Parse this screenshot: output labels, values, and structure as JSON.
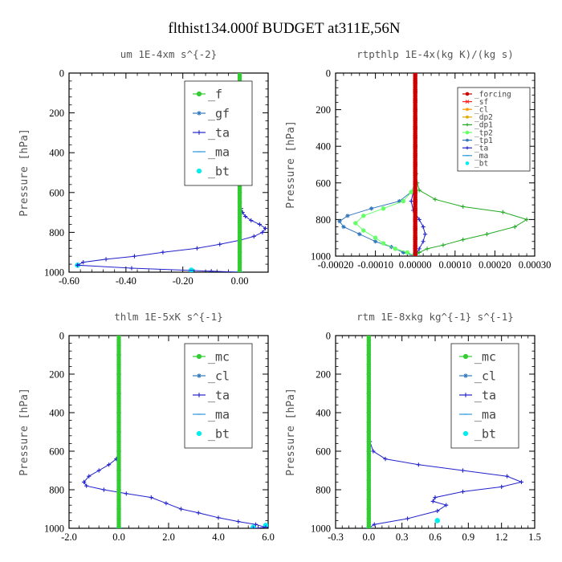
{
  "title": "flthist134.000f  BUDGET at311E,56N",
  "chart_data": [
    {
      "type": "line",
      "title": "um  1E-4xm s^{-2}",
      "ylabel": "Pressure [hPa]",
      "xlim": [
        -0.6,
        0.1
      ],
      "ylim": [
        0,
        1000
      ],
      "y_inverted": true,
      "xticks": [
        -0.6,
        -0.4,
        -0.2,
        0.0
      ],
      "xtick_labels": [
        "-0.60",
        "-0.40",
        "-0.20",
        "0.00"
      ],
      "yticks": [
        0,
        200,
        400,
        600,
        800,
        1000
      ],
      "ytick_labels": [
        "0",
        "200",
        "400",
        "600",
        "800",
        "1000"
      ],
      "legend_position": "top-right",
      "legend_size": "large",
      "series": [
        {
          "name": "_f",
          "color": "#33cc33",
          "marker": "o",
          "x": [
            0,
            0,
            0,
            0,
            0,
            0,
            0,
            0,
            0,
            0,
            0,
            0,
            0,
            0,
            0,
            0,
            0,
            0,
            0,
            0,
            0
          ],
          "y": [
            0,
            50,
            100,
            150,
            200,
            250,
            300,
            350,
            400,
            450,
            500,
            550,
            600,
            650,
            700,
            750,
            800,
            850,
            900,
            950,
            1000
          ]
        },
        {
          "name": "_gf",
          "color": "#3377bb",
          "marker": "*",
          "x": [
            0,
            0,
            0,
            0,
            0,
            0,
            0,
            0,
            0,
            0,
            0,
            0,
            0,
            0,
            0,
            0,
            0,
            0,
            0,
            0,
            0
          ],
          "y": [
            0,
            50,
            100,
            150,
            200,
            250,
            300,
            350,
            400,
            450,
            500,
            550,
            600,
            650,
            700,
            750,
            800,
            850,
            900,
            950,
            1000
          ]
        },
        {
          "name": "_ta",
          "color": "#2222cc",
          "marker": "+",
          "x": [
            0,
            0,
            0,
            0,
            0,
            0,
            0,
            0,
            0.005,
            0.01,
            0.02,
            0.04,
            0.07,
            0.09,
            0.08,
            0.05,
            0.0,
            -0.07,
            -0.15,
            -0.27,
            -0.37,
            -0.47,
            -0.55,
            -0.57,
            -0.38,
            -0.1,
            0
          ],
          "y": [
            0,
            100,
            200,
            300,
            400,
            500,
            600,
            650,
            680,
            700,
            720,
            740,
            760,
            780,
            800,
            820,
            840,
            860,
            880,
            900,
            920,
            935,
            950,
            965,
            980,
            995,
            1000
          ]
        },
        {
          "name": "_ma",
          "color": "#3399dd",
          "marker": "-",
          "x": [
            0,
            0,
            0,
            0,
            0,
            0,
            0,
            0,
            0,
            0
          ],
          "y": [
            0,
            100,
            200,
            300,
            400,
            500,
            600,
            700,
            800,
            900
          ]
        },
        {
          "name": "_bt",
          "color": "#00eeee",
          "marker": "o",
          "x": [
            0.0,
            -0.57,
            -0.17,
            0.0
          ],
          "y": [
            1000,
            965,
            990,
            1000
          ]
        }
      ]
    },
    {
      "type": "line",
      "title": "rtpthlp  1E-4x(kg K)/(kg s)",
      "ylabel": "Pressure [hPa]",
      "xlim": [
        -0.0002,
        0.0003
      ],
      "ylim": [
        0,
        1000
      ],
      "y_inverted": true,
      "xticks": [
        -0.0002,
        -0.0001,
        0.0,
        0.0001,
        0.0002,
        0.0003
      ],
      "xtick_labels": [
        "-0.00020",
        "-0.00010",
        "0.00000",
        "0.00010",
        "0.00020",
        "0.00030"
      ],
      "yticks": [
        0,
        200,
        400,
        600,
        800,
        1000
      ],
      "ytick_labels": [
        "0",
        "200",
        "400",
        "600",
        "800",
        "1000"
      ],
      "legend_position": "top-right",
      "legend_size": "small",
      "series": [
        {
          "name": "_forcing",
          "color": "#cc0000",
          "marker": "o",
          "x": [
            0,
            0,
            0,
            0,
            0,
            0,
            0,
            0,
            0,
            0,
            0,
            0,
            0,
            0,
            0,
            0,
            0,
            0,
            0,
            0,
            0
          ],
          "y": [
            0,
            50,
            100,
            150,
            200,
            250,
            300,
            350,
            400,
            450,
            500,
            550,
            600,
            650,
            700,
            750,
            800,
            850,
            900,
            950,
            1000
          ]
        },
        {
          "name": "_sf",
          "color": "#ff2222",
          "marker": "x",
          "x": [
            0,
            0,
            0,
            0,
            0,
            0,
            0,
            0,
            0,
            0,
            0,
            0,
            0,
            0,
            0,
            0,
            0,
            0,
            0,
            0,
            0
          ],
          "y": [
            0,
            50,
            100,
            150,
            200,
            250,
            300,
            350,
            400,
            450,
            500,
            550,
            600,
            650,
            700,
            750,
            800,
            850,
            900,
            950,
            1000
          ]
        },
        {
          "name": "_cl",
          "color": "#ff9900",
          "marker": "*",
          "x": [
            0,
            0,
            0,
            0,
            0,
            0,
            0,
            0,
            0,
            0,
            0
          ],
          "y": [
            0,
            100,
            200,
            300,
            400,
            500,
            600,
            700,
            800,
            900,
            1000
          ]
        },
        {
          "name": "_dp2",
          "color": "#ddaa00",
          "marker": "*",
          "x": [
            0,
            0,
            0,
            0,
            0,
            0,
            0,
            0,
            0,
            0,
            0
          ],
          "y": [
            0,
            100,
            200,
            300,
            400,
            500,
            600,
            700,
            800,
            900,
            1000
          ]
        },
        {
          "name": "_dp1",
          "color": "#22aa22",
          "marker": "+",
          "x": [
            0,
            0,
            0,
            0,
            0,
            0,
            2e-06,
            5e-06,
            1e-05,
            5e-05,
            0.00012,
            0.00022,
            0.00028,
            0.00025,
            0.00018,
            0.00012,
            7e-05,
            3e-05,
            1e-05,
            0.0
          ],
          "y": [
            0,
            100,
            200,
            300,
            400,
            500,
            550,
            600,
            640,
            690,
            730,
            760,
            800,
            840,
            880,
            910,
            940,
            960,
            980,
            1000
          ]
        },
        {
          "name": "_tp2",
          "color": "#66ff66",
          "marker": "o",
          "x": [
            0,
            0,
            0,
            0,
            0,
            0,
            0,
            -1e-05,
            -3e-05,
            -8e-05,
            -0.00013,
            -0.00015,
            -0.00013,
            -0.0001,
            -8e-05,
            -5e-05,
            -2e-05,
            0.0
          ],
          "y": [
            0,
            100,
            200,
            300,
            400,
            500,
            600,
            650,
            700,
            740,
            780,
            820,
            860,
            900,
            930,
            960,
            980,
            1000
          ]
        },
        {
          "name": "_tp1",
          "color": "#3377bb",
          "marker": "*",
          "x": [
            0,
            0,
            0,
            0,
            0,
            0,
            0,
            -1e-05,
            -4e-05,
            -0.00011,
            -0.00017,
            -0.00019,
            -0.00018,
            -0.00014,
            -0.0001,
            -6e-05,
            -3e-05,
            0.0
          ],
          "y": [
            0,
            100,
            200,
            300,
            400,
            500,
            600,
            650,
            700,
            740,
            780,
            810,
            840,
            880,
            920,
            950,
            980,
            1000
          ]
        },
        {
          "name": "_ta",
          "color": "#2222cc",
          "marker": "+",
          "x": [
            0,
            0,
            0,
            0,
            0,
            0,
            0,
            -5e-06,
            -1e-05,
            -5e-06,
            1e-05,
            2e-05,
            2.5e-05,
            2e-05,
            1e-05,
            0.0
          ],
          "y": [
            0,
            100,
            200,
            300,
            400,
            500,
            600,
            650,
            700,
            750,
            800,
            840,
            880,
            920,
            960,
            1000
          ]
        },
        {
          "name": "_ma",
          "color": "#3399dd",
          "marker": "-",
          "x": [
            0,
            0,
            0,
            0,
            0,
            0,
            0,
            0,
            0,
            0
          ],
          "y": [
            0,
            100,
            200,
            300,
            400,
            500,
            600,
            700,
            800,
            900
          ]
        },
        {
          "name": "_bt",
          "color": "#00eeee",
          "marker": "o",
          "x": [
            0,
            0
          ],
          "y": [
            990,
            1000
          ]
        }
      ]
    },
    {
      "type": "line",
      "title": "thlm  1E-5xK s^{-1}",
      "ylabel": "Pressure [hPa]",
      "xlim": [
        -2.0,
        6.0
      ],
      "ylim": [
        0,
        1000
      ],
      "y_inverted": true,
      "xticks": [
        -2.0,
        0.0,
        2.0,
        4.0,
        6.0
      ],
      "xtick_labels": [
        "-2.0",
        "0.0",
        "2.0",
        "4.0",
        "6.0"
      ],
      "yticks": [
        0,
        200,
        400,
        600,
        800,
        1000
      ],
      "ytick_labels": [
        "0",
        "200",
        "400",
        "600",
        "800",
        "1000"
      ],
      "legend_position": "top-right",
      "legend_size": "large",
      "series": [
        {
          "name": "_mc",
          "color": "#33cc33",
          "marker": "o",
          "x": [
            0,
            0,
            0,
            0,
            0,
            0,
            0,
            0,
            0,
            0,
            0,
            0,
            0,
            0,
            0,
            0,
            0,
            0,
            0,
            0,
            0
          ],
          "y": [
            0,
            50,
            100,
            150,
            200,
            250,
            300,
            350,
            400,
            450,
            500,
            550,
            600,
            650,
            700,
            750,
            800,
            850,
            900,
            950,
            1000
          ]
        },
        {
          "name": "_cl",
          "color": "#3377bb",
          "marker": "*",
          "x": [
            0,
            0,
            0,
            0,
            0,
            0,
            0,
            0,
            0,
            0,
            0
          ],
          "y": [
            0,
            100,
            200,
            300,
            400,
            500,
            600,
            700,
            800,
            900,
            1000
          ]
        },
        {
          "name": "_ta",
          "color": "#2222cc",
          "marker": "+",
          "x": [
            0,
            0,
            0,
            0,
            0,
            0,
            0,
            -0.1,
            -0.4,
            -0.8,
            -1.2,
            -1.4,
            -1.3,
            -0.6,
            0.3,
            1.3,
            1.9,
            2.5,
            3.2,
            4.0,
            4.8,
            5.5,
            5.9,
            5.4
          ],
          "y": [
            0,
            100,
            200,
            300,
            400,
            500,
            600,
            640,
            670,
            700,
            730,
            760,
            780,
            800,
            820,
            840,
            870,
            900,
            920,
            945,
            965,
            980,
            995,
            1000
          ]
        },
        {
          "name": "_ma",
          "color": "#3399dd",
          "marker": "-",
          "x": [
            0,
            0,
            0,
            0,
            0,
            0,
            0,
            0,
            0,
            0
          ],
          "y": [
            0,
            100,
            200,
            300,
            400,
            500,
            600,
            700,
            800,
            900
          ]
        },
        {
          "name": "_bt",
          "color": "#00eeee",
          "marker": "o",
          "x": [
            0.0,
            5.4,
            5.9,
            0.0
          ],
          "y": [
            1000,
            995,
            985,
            1000
          ]
        }
      ]
    },
    {
      "type": "line",
      "title": "rtm  1E-8xkg kg^{-1} s^{-1}",
      "ylabel": "Pressure [hPa]",
      "xlim": [
        -0.3,
        1.5
      ],
      "ylim": [
        0,
        1000
      ],
      "y_inverted": true,
      "xticks": [
        -0.3,
        0.0,
        0.3,
        0.6,
        0.9,
        1.2,
        1.5
      ],
      "xtick_labels": [
        "-0.3",
        "0.0",
        "0.3",
        "0.6",
        "0.9",
        "1.2",
        "1.5"
      ],
      "yticks": [
        0,
        200,
        400,
        600,
        800,
        1000
      ],
      "ytick_labels": [
        "0",
        "200",
        "400",
        "600",
        "800",
        "1000"
      ],
      "legend_position": "top-right",
      "legend_size": "large",
      "series": [
        {
          "name": "_mc",
          "color": "#33cc33",
          "marker": "o",
          "x": [
            0,
            0,
            0,
            0,
            0,
            0,
            0,
            0,
            0,
            0,
            0,
            0,
            0,
            0,
            0,
            0,
            0,
            0,
            0,
            0,
            0
          ],
          "y": [
            0,
            50,
            100,
            150,
            200,
            250,
            300,
            350,
            400,
            450,
            500,
            550,
            600,
            650,
            700,
            750,
            800,
            850,
            900,
            950,
            1000
          ]
        },
        {
          "name": "_cl",
          "color": "#3377bb",
          "marker": "*",
          "x": [
            0,
            0,
            0,
            0,
            0,
            0,
            0,
            0,
            0,
            0,
            0
          ],
          "y": [
            0,
            100,
            200,
            300,
            400,
            500,
            600,
            700,
            800,
            900,
            1000
          ]
        },
        {
          "name": "_ta",
          "color": "#2222cc",
          "marker": "+",
          "x": [
            0,
            0,
            0,
            0,
            0,
            0,
            0.01,
            0.04,
            0.15,
            0.45,
            0.85,
            1.25,
            1.38,
            1.2,
            0.85,
            0.6,
            0.58,
            0.7,
            0.62,
            0.35,
            0.05,
            0.0
          ],
          "y": [
            0,
            100,
            200,
            300,
            400,
            500,
            550,
            600,
            640,
            670,
            700,
            730,
            760,
            785,
            810,
            840,
            860,
            880,
            910,
            950,
            980,
            1000
          ]
        },
        {
          "name": "_ma",
          "color": "#3399dd",
          "marker": "-",
          "x": [
            0,
            0,
            0,
            0,
            0,
            0,
            0,
            0,
            0,
            0
          ],
          "y": [
            0,
            100,
            200,
            300,
            400,
            500,
            600,
            700,
            800,
            900
          ]
        },
        {
          "name": "_bt",
          "color": "#00eeee",
          "marker": "o",
          "x": [
            0.0,
            0.62,
            0.0
          ],
          "y": [
            1000,
            960,
            1000
          ]
        }
      ]
    }
  ]
}
